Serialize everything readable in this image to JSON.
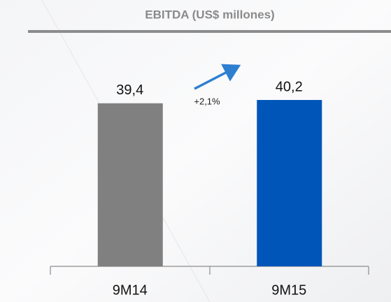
{
  "chart_data": {
    "type": "bar",
    "title": "EBITDA (US$ millones)",
    "categories": [
      "9M14",
      "9M15"
    ],
    "values": [
      39.4,
      40.2
    ],
    "value_labels": [
      "39,4",
      "40,2"
    ],
    "colors": [
      "#808080",
      "#0056b8"
    ],
    "annotation": "+2,1%"
  }
}
